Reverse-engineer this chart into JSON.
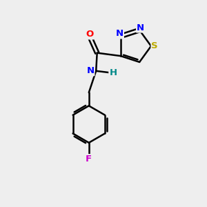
{
  "background_color": "#eeeeee",
  "atom_colors": {
    "C": "#000000",
    "N": "#0000ff",
    "O": "#ff0000",
    "S": "#bbaa00",
    "F": "#cc00cc",
    "H": "#008888"
  },
  "figsize": [
    3.0,
    3.0
  ],
  "dpi": 100
}
